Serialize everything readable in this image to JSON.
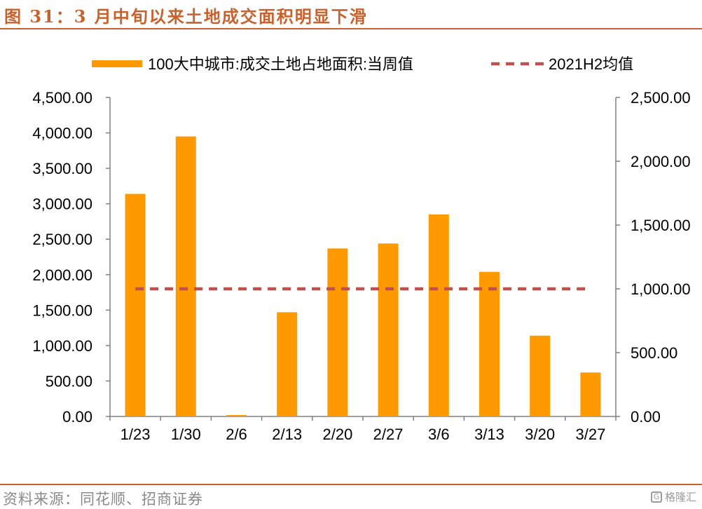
{
  "title": "图 31：3 月中旬以来土地成交面积明显下滑",
  "source": "资料来源：同花顺、招商证券",
  "watermark": {
    "icon": "gelonghui-logo-icon",
    "text": "格隆汇"
  },
  "colors": {
    "accent": "#c7622e",
    "bar": "#ff9900",
    "dashed": "#c0504d",
    "axis": "#808080"
  },
  "chart_data": {
    "type": "bar",
    "categories": [
      "1/23",
      "1/30",
      "2/6",
      "2/13",
      "2/20",
      "2/27",
      "3/6",
      "3/13",
      "3/20",
      "3/27"
    ],
    "series": [
      {
        "name": "100大中城市:成交土地占地面积:当周值",
        "type": "bar",
        "axis": "left",
        "values": [
          3140,
          3950,
          20,
          1470,
          2370,
          2440,
          2850,
          2040,
          1140,
          620
        ]
      },
      {
        "name": "2021H2均值",
        "type": "line-dashed",
        "axis": "right",
        "values": [
          1000,
          1000,
          1000,
          1000,
          1000,
          1000,
          1000,
          1000,
          1000,
          1000
        ]
      }
    ],
    "y_left": {
      "min": 0,
      "max": 4500,
      "step": 500,
      "ticks": [
        "0.00",
        "500.00",
        "1,000.00",
        "1,500.00",
        "2,000.00",
        "2,500.00",
        "3,000.00",
        "3,500.00",
        "4,000.00",
        "4,500.00"
      ]
    },
    "y_right": {
      "min": 0,
      "max": 2500,
      "step": 500,
      "ticks": [
        "0.00",
        "500.00",
        "1,000.00",
        "1,500.00",
        "2,000.00",
        "2,500.00"
      ]
    },
    "legend_position": "top",
    "grid": false
  }
}
